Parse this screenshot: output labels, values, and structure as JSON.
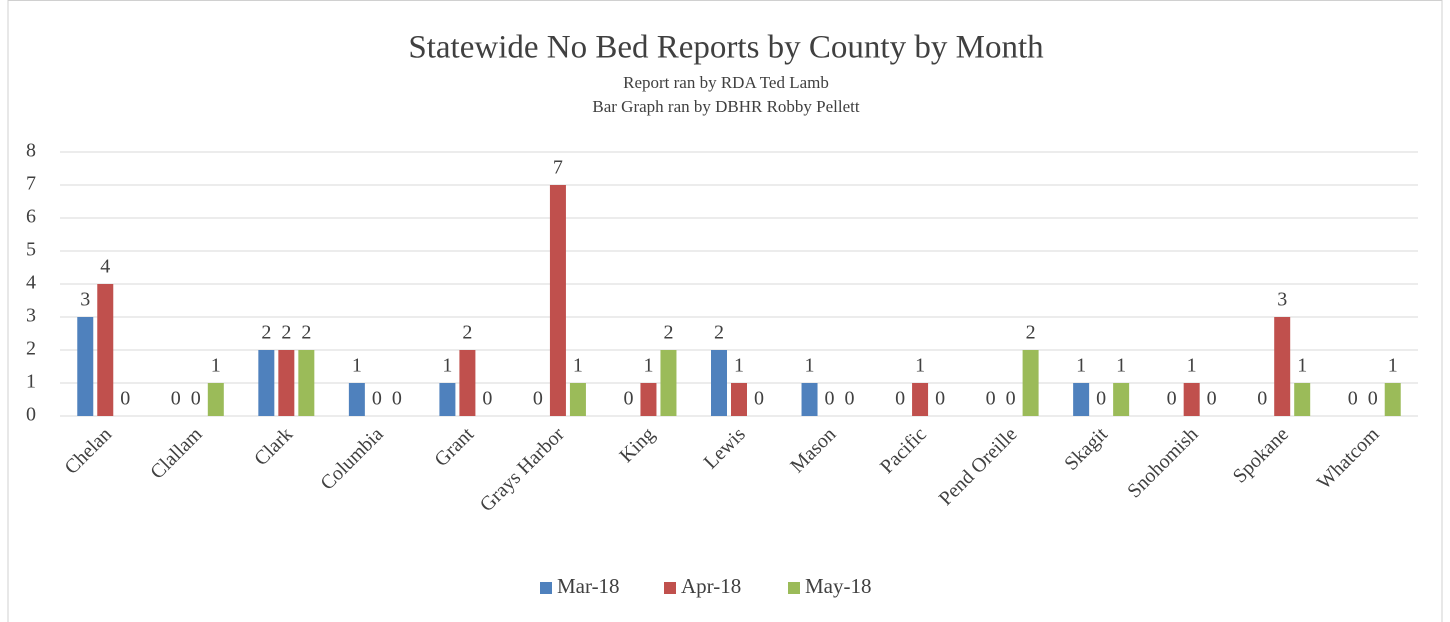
{
  "chart_data": {
    "type": "bar",
    "title": "Statewide No Bed Reports by County by Month",
    "subtitle": [
      "Report ran by RDA Ted Lamb",
      "Bar Graph ran by DBHR Robby Pellett"
    ],
    "categories": [
      "Chelan",
      "Clallam",
      "Clark",
      "Columbia",
      "Grant",
      "Grays Harbor",
      "King",
      "Lewis",
      "Mason",
      "Pacific",
      "Pend Oreille",
      "Skagit",
      "Snohomish",
      "Spokane",
      "Whatcom"
    ],
    "series": [
      {
        "name": "Mar-18",
        "color": "#4f81bd",
        "values": [
          3,
          0,
          2,
          1,
          1,
          0,
          0,
          2,
          1,
          0,
          0,
          1,
          0,
          0,
          0
        ]
      },
      {
        "name": "Apr-18",
        "color": "#c0504d",
        "values": [
          4,
          0,
          2,
          0,
          2,
          7,
          1,
          1,
          0,
          1,
          0,
          0,
          1,
          3,
          0
        ]
      },
      {
        "name": "May-18",
        "color": "#9bbb59",
        "values": [
          0,
          1,
          2,
          0,
          0,
          1,
          2,
          0,
          0,
          0,
          2,
          1,
          0,
          1,
          1
        ]
      }
    ],
    "ylim": [
      0,
      8
    ],
    "yticks": [
      0,
      1,
      2,
      3,
      4,
      5,
      6,
      7,
      8
    ],
    "grid": true,
    "legend": "bottom"
  }
}
